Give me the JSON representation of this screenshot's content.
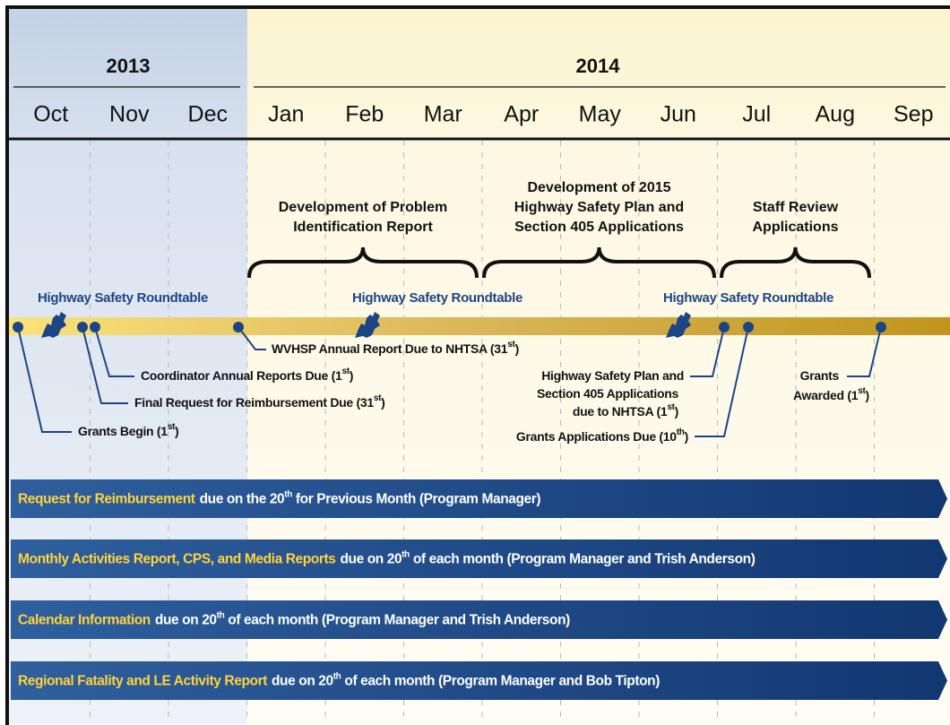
{
  "years": [
    "2013",
    "2014"
  ],
  "months": [
    "Oct",
    "Nov",
    "Dec",
    "Jan",
    "Feb",
    "Mar",
    "Apr",
    "May",
    "Jun",
    "Jul",
    "Aug",
    "Sep"
  ],
  "phases": [
    {
      "lines": [
        "Development of Problem",
        "Identification Report"
      ]
    },
    {
      "lines": [
        "Development of 2015",
        "Highway Safety Plan and",
        "Section 405 Applications"
      ]
    },
    {
      "lines": [
        "Staff Review",
        "Applications"
      ]
    }
  ],
  "roundtables": [
    "Highway Safety Roundtable",
    "Highway Safety Roundtable",
    "Highway Safety Roundtable"
  ],
  "events": [
    {
      "lines": [
        {
          "text": "Grants Begin (1",
          "sup": "st",
          "after": ")"
        }
      ]
    },
    {
      "lines": [
        {
          "text": "Final Request for Reimbursement Due (31",
          "sup": "st",
          "after": ")"
        }
      ]
    },
    {
      "lines": [
        {
          "text": "Coordinator Annual Reports Due (1",
          "sup": "st",
          "after": ")"
        }
      ]
    },
    {
      "lines": [
        {
          "text": "WVHSP Annual Report Due to NHTSA (31",
          "sup": "st",
          "after": ")"
        }
      ]
    },
    {
      "lines": [
        {
          "text": "Highway Safety Plan and"
        },
        {
          "text": "Section 405 Applications"
        },
        {
          "text": "due to NHTSA (1",
          "sup": "st",
          "after": ")"
        }
      ]
    },
    {
      "lines": [
        {
          "text": "Grants Applications Due (10",
          "sup": "th",
          "after": ")"
        }
      ]
    },
    {
      "lines": [
        {
          "text": "Grants"
        },
        {
          "text": "Awarded (1",
          "sup": "st",
          "after": ")"
        }
      ]
    }
  ],
  "bars": [
    {
      "bold": "Request for Reimbursement",
      "text": "due on the 20",
      "sup": "th",
      "after": "for Previous Month (Program Manager)"
    },
    {
      "bold": "Monthly Activities Report, CPS, and Media Reports",
      "text": "due on 20",
      "sup": "th",
      "after": "of each month (Program Manager and Trish Anderson)"
    },
    {
      "bold": "Calendar Information",
      "text": "due on 20",
      "sup": "th",
      "after": "of each month (Program Manager and Trish Anderson)"
    },
    {
      "bold": "Regional Fatality and LE Activity Report",
      "text": "due on 20",
      "sup": "th",
      "after": "of each month (Program Manager and Bob Tipton)"
    }
  ]
}
